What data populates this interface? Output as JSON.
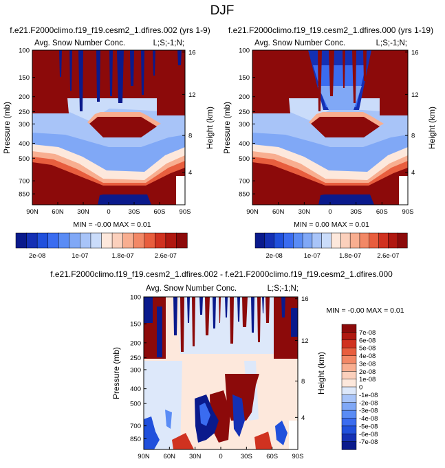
{
  "page_title": "DJF",
  "chart_data": [
    {
      "type": "heatmap",
      "title": "f.e21.F2000climo.f19_f19.cesm2_1.dfires.002 (yrs 1-9)",
      "subtitle_left": "Avg. Snow Number Conc.",
      "subtitle_right": "L;S;-1;N;",
      "xlabel": "",
      "ylabel": "Pressure (mb)",
      "y2label": "Height (km)",
      "x_ticks": [
        "90N",
        "60N",
        "30N",
        "0",
        "30S",
        "60S",
        "90S"
      ],
      "y_ticks": [
        "100",
        "150",
        "200",
        "250",
        "300",
        "400",
        "500",
        "700",
        "850"
      ],
      "y_scale": "log",
      "y_range": [
        100,
        1000
      ],
      "y2_ticks": [
        "16",
        "12",
        "8",
        "4"
      ],
      "stats": "MIN =  -0.00  MAX =  0.01",
      "colorbar_labels": [
        "2e-08",
        "1e-07",
        "1.8e-07",
        "2.6e-07"
      ]
    },
    {
      "type": "heatmap",
      "title": "f.e21.F2000climo.f19_f19.cesm2_1.dfires.000 (yrs 1-19)",
      "subtitle_left": "Avg. Snow Number Conc.",
      "subtitle_right": "L;S;-1;N;",
      "xlabel": "",
      "ylabel": "Pressure (mb)",
      "y2label": "Height (km)",
      "x_ticks": [
        "90N",
        "60N",
        "30N",
        "0",
        "30S",
        "60S",
        "90S"
      ],
      "y_ticks": [
        "100",
        "150",
        "200",
        "250",
        "300",
        "400",
        "500",
        "700",
        "850"
      ],
      "y_scale": "log",
      "y_range": [
        100,
        1000
      ],
      "y2_ticks": [
        "16",
        "12",
        "8",
        "4"
      ],
      "stats": "MIN =  0.00  MAX =  0.01",
      "colorbar_labels": [
        "2e-08",
        "1e-07",
        "1.8e-07",
        "2.6e-07"
      ]
    },
    {
      "type": "heatmap",
      "title": "f.e21.F2000climo.f19_f19.cesm2_1.dfires.002 - f.e21.F2000climo.f19_f19.cesm2_1.dfires.000",
      "subtitle_left": "Avg. Snow Number Conc.",
      "subtitle_right": "L;S;-1;N;",
      "xlabel": "",
      "ylabel": "Pressure (mb)",
      "y2label": "Height (km)",
      "x_ticks": [
        "90N",
        "60N",
        "30N",
        "0",
        "30S",
        "60S",
        "90S"
      ],
      "y_ticks": [
        "100",
        "150",
        "200",
        "250",
        "300",
        "400",
        "500",
        "700",
        "850"
      ],
      "y_scale": "log",
      "y_range": [
        100,
        1000
      ],
      "y2_ticks": [
        "16",
        "12",
        "8",
        "4"
      ],
      "stats": "MIN =  -0.00  MAX =  0.01",
      "colorbar_labels": [
        "7e-08",
        "6e-08",
        "5e-08",
        "4e-08",
        "3e-08",
        "2e-08",
        "1e-08",
        "0",
        "-1e-08",
        "-2e-08",
        "-3e-08",
        "-4e-08",
        "-5e-08",
        "-6e-08",
        "-7e-08"
      ]
    }
  ],
  "colors": {
    "seq_palette": [
      "#0a1a8c",
      "#1430b4",
      "#2050dc",
      "#3a6cf0",
      "#5a8cf5",
      "#80a8f6",
      "#a8c4f8",
      "#cadcfa",
      "#fde8dc",
      "#fbd0bc",
      "#f8ae90",
      "#f28866",
      "#e85e3e",
      "#d03220",
      "#b01810",
      "#8c0a0a"
    ],
    "diff_palette": [
      "#8c0a0a",
      "#b01810",
      "#d03220",
      "#e85e3e",
      "#f28866",
      "#f8ae90",
      "#fbd0bc",
      "#fde8dc",
      "#dde8fa",
      "#a8c4f8",
      "#80a8f6",
      "#5a8cf5",
      "#3a6cf0",
      "#2050dc",
      "#1430b4",
      "#0a1a8c"
    ]
  }
}
